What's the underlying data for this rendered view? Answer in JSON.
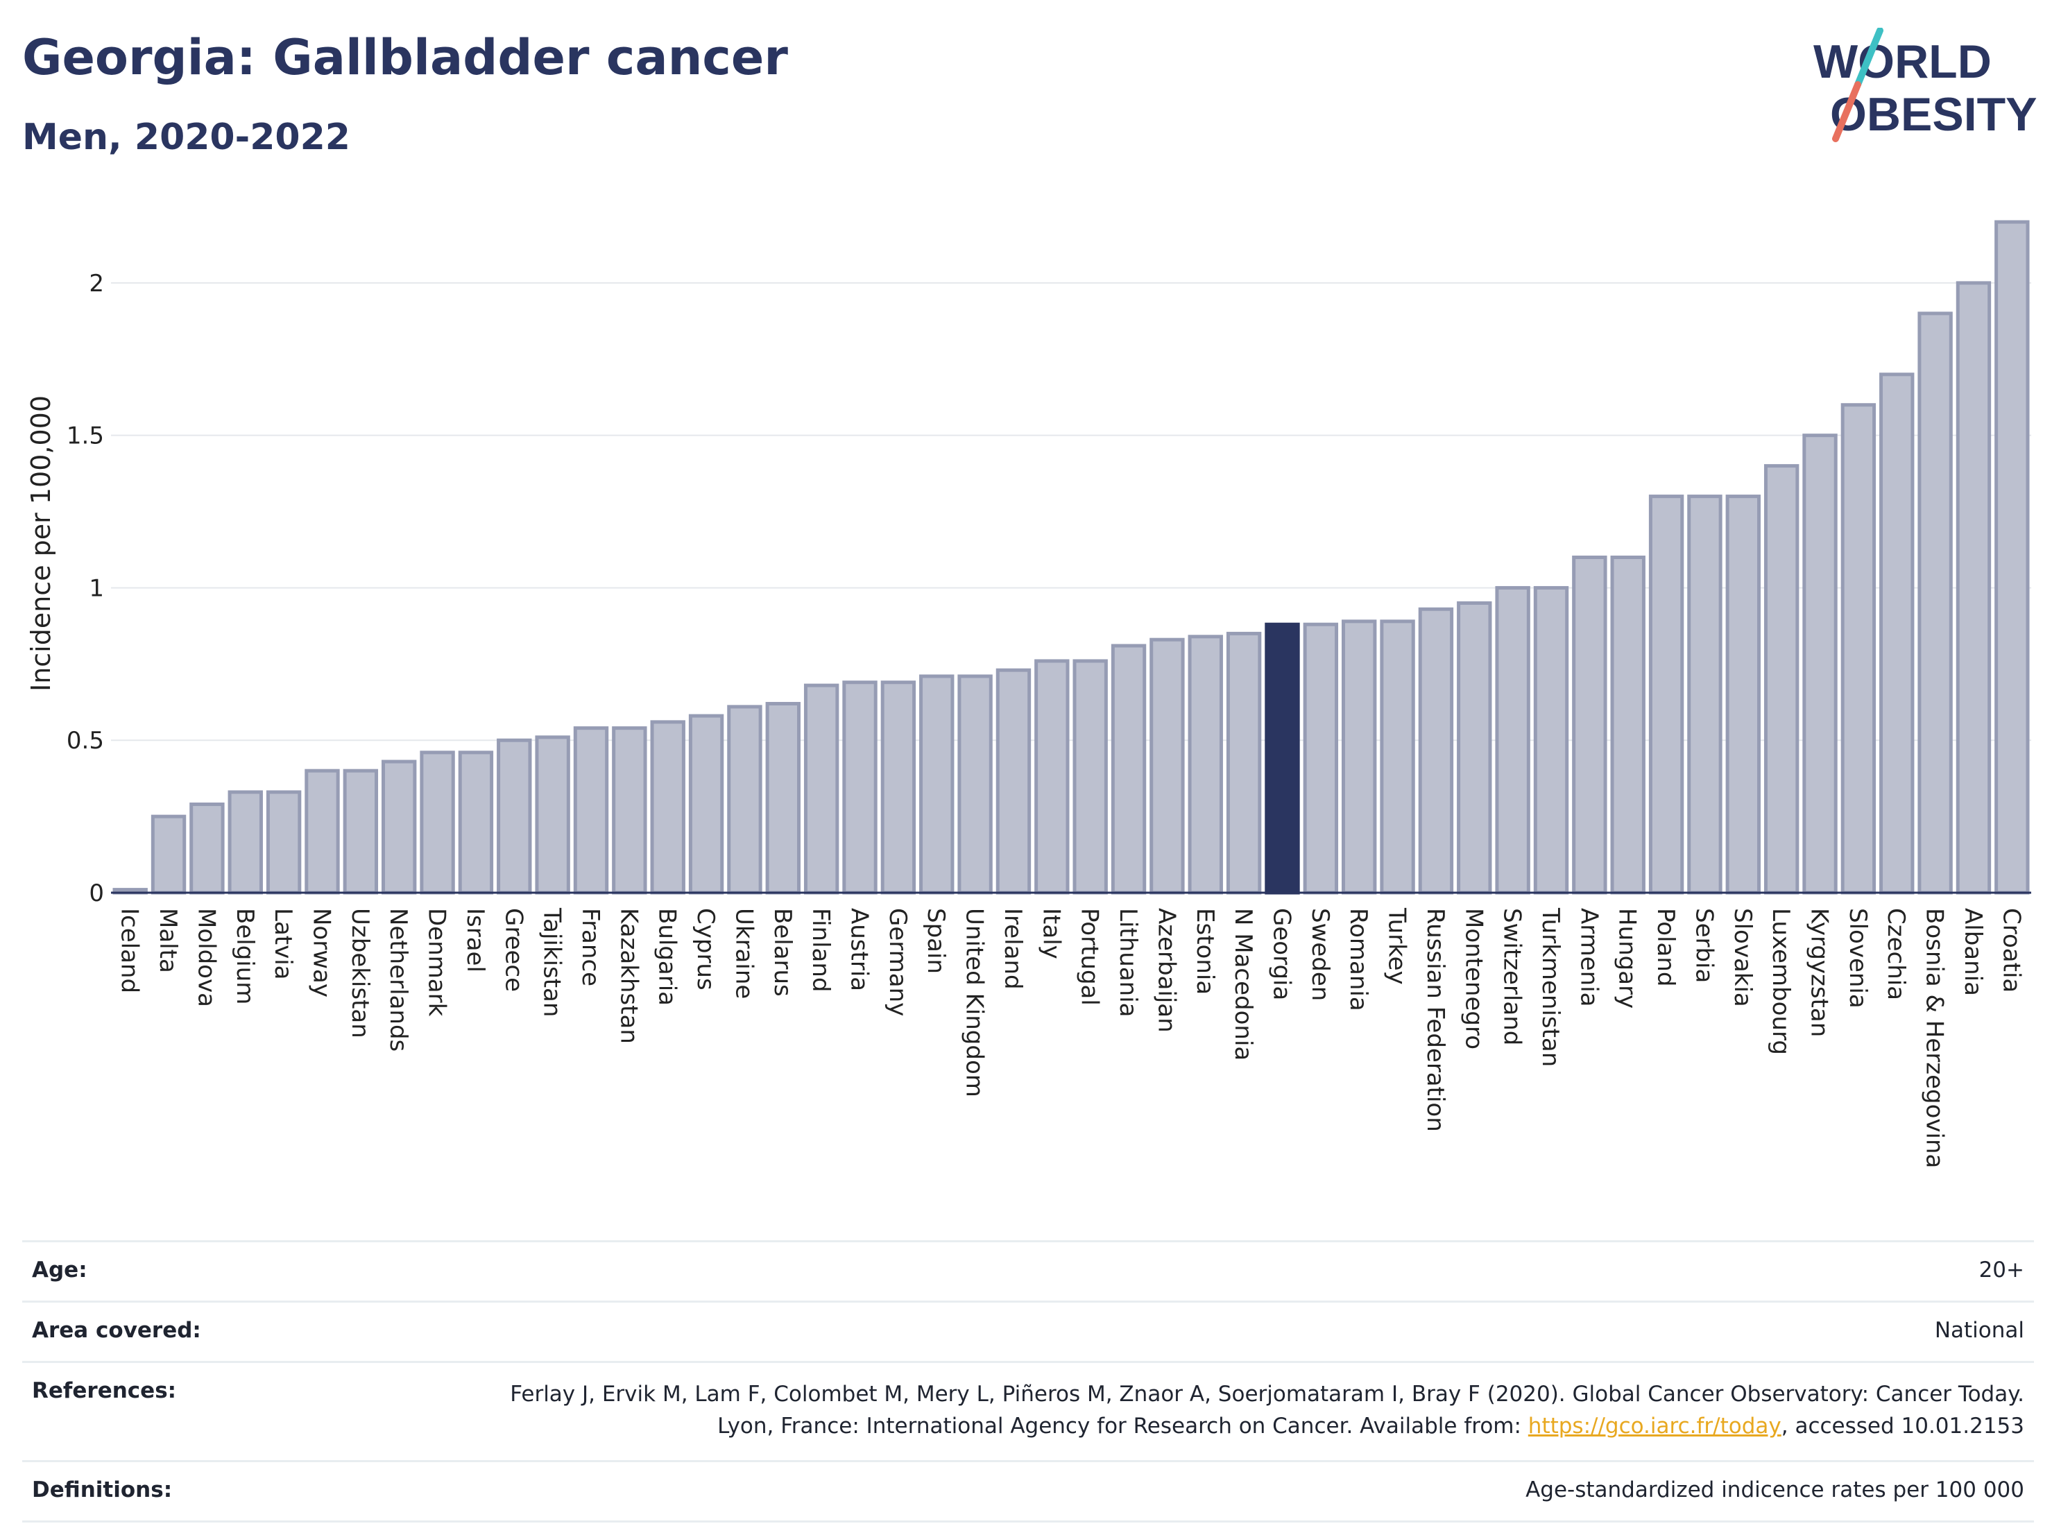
{
  "header": {
    "title": "Georgia: Gallbladder cancer",
    "subtitle": "Men, 2020-2022"
  },
  "logo": {
    "line1": "WORLD",
    "line2": "OBESITY",
    "accent_teal": "#3ec0c4",
    "accent_coral": "#e8705e"
  },
  "colors": {
    "bar_default": "#bcc0cf",
    "bar_default_border": "#969cb4",
    "bar_highlight": "#2a3560",
    "axis_line": "#2a3560",
    "grid": "#e5e8ec",
    "link": "#e8a820"
  },
  "chart_data": {
    "type": "bar",
    "ylabel": "Incidence per 100,000",
    "xlabel": "",
    "ylim": [
      0,
      2.2
    ],
    "yticks": [
      0,
      0.5,
      1,
      1.5,
      2
    ],
    "ytick_labels": [
      "0",
      "0.5",
      "1",
      "1.5",
      "2"
    ],
    "grid": true,
    "highlight": "Georgia",
    "categories": [
      "Iceland",
      "Malta",
      "Moldova",
      "Belgium",
      "Latvia",
      "Norway",
      "Uzbekistan",
      "Netherlands",
      "Denmark",
      "Israel",
      "Greece",
      "Tajikistan",
      "France",
      "Kazakhstan",
      "Bulgaria",
      "Cyprus",
      "Ukraine",
      "Belarus",
      "Finland",
      "Austria",
      "Germany",
      "Spain",
      "United Kingdom",
      "Ireland",
      "Italy",
      "Portugal",
      "Lithuania",
      "Azerbaijan",
      "Estonia",
      "N Macedonia",
      "Georgia",
      "Sweden",
      "Romania",
      "Turkey",
      "Russian Federation",
      "Montenegro",
      "Switzerland",
      "Turkmenistan",
      "Armenia",
      "Hungary",
      "Poland",
      "Serbia",
      "Slovakia",
      "Luxembourg",
      "Kyrgyzstan",
      "Slovenia",
      "Czechia",
      "Bosnia & Herzegovina",
      "Albania",
      "Croatia"
    ],
    "values": [
      0.01,
      0.25,
      0.29,
      0.33,
      0.33,
      0.4,
      0.4,
      0.43,
      0.46,
      0.46,
      0.5,
      0.51,
      0.54,
      0.54,
      0.56,
      0.58,
      0.61,
      0.62,
      0.68,
      0.69,
      0.69,
      0.71,
      0.71,
      0.73,
      0.76,
      0.76,
      0.81,
      0.83,
      0.84,
      0.85,
      0.88,
      0.88,
      0.89,
      0.89,
      0.93,
      0.95,
      1.0,
      1.0,
      1.1,
      1.1,
      1.3,
      1.3,
      1.3,
      1.4,
      1.5,
      1.6,
      1.7,
      1.9,
      2.0,
      2.2
    ]
  },
  "info": {
    "age_label": "Age:",
    "age_value": "20+",
    "area_label": "Area covered:",
    "area_value": "National",
    "references_label": "References:",
    "references_text": "Ferlay J, Ervik M, Lam F, Colombet M, Mery L, Piñeros M, Znaor A, Soerjomataram I, Bray F (2020). Global Cancer Observatory: Cancer Today. Lyon, France: International Agency for Research on Cancer. Available from: ",
    "references_link": "https://gco.iarc.fr/today",
    "references_suffix": ", accessed 10.01.2153",
    "definitions_label": "Definitions:",
    "definitions_value": "Age-standardized indicence rates per 100 000"
  }
}
